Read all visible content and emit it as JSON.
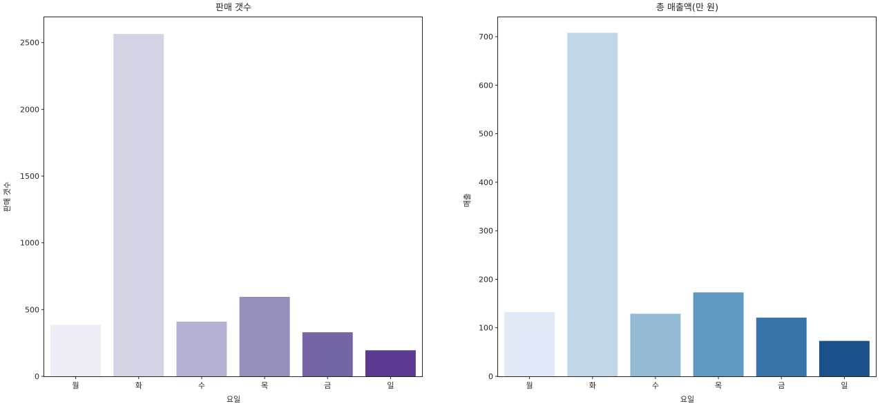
{
  "chart_data": [
    {
      "type": "bar",
      "title": "판매 갯수",
      "xlabel": "요일",
      "ylabel": "판매 갯수",
      "categories": [
        "월",
        "화",
        "수",
        "목",
        "금",
        "일"
      ],
      "values": [
        385,
        2565,
        410,
        595,
        330,
        195
      ],
      "ylim": [
        0,
        2690
      ],
      "yticks": [
        0,
        500,
        1000,
        1500,
        2000,
        2500
      ],
      "colors": [
        "#ececf4",
        "#d3d3e6",
        "#b3b2d4",
        "#928fbb",
        "#7665a4",
        "#5b3a93"
      ],
      "grid": false,
      "legend": "none"
    },
    {
      "type": "bar",
      "title": "총 매출액(만 원)",
      "xlabel": "요일",
      "ylabel": "매출",
      "categories": [
        "월",
        "화",
        "수",
        "목",
        "금",
        "일"
      ],
      "values": [
        132,
        708,
        129,
        173,
        121,
        73
      ],
      "ylim": [
        0,
        740
      ],
      "yticks": [
        0,
        100,
        200,
        300,
        400,
        500,
        600,
        700
      ],
      "colors": [
        "#deeaf6",
        "#bed6e8",
        "#94bbd6",
        "#5f99c1",
        "#3875ab",
        "#1d518b"
      ],
      "grid": false,
      "legend": "none"
    }
  ]
}
